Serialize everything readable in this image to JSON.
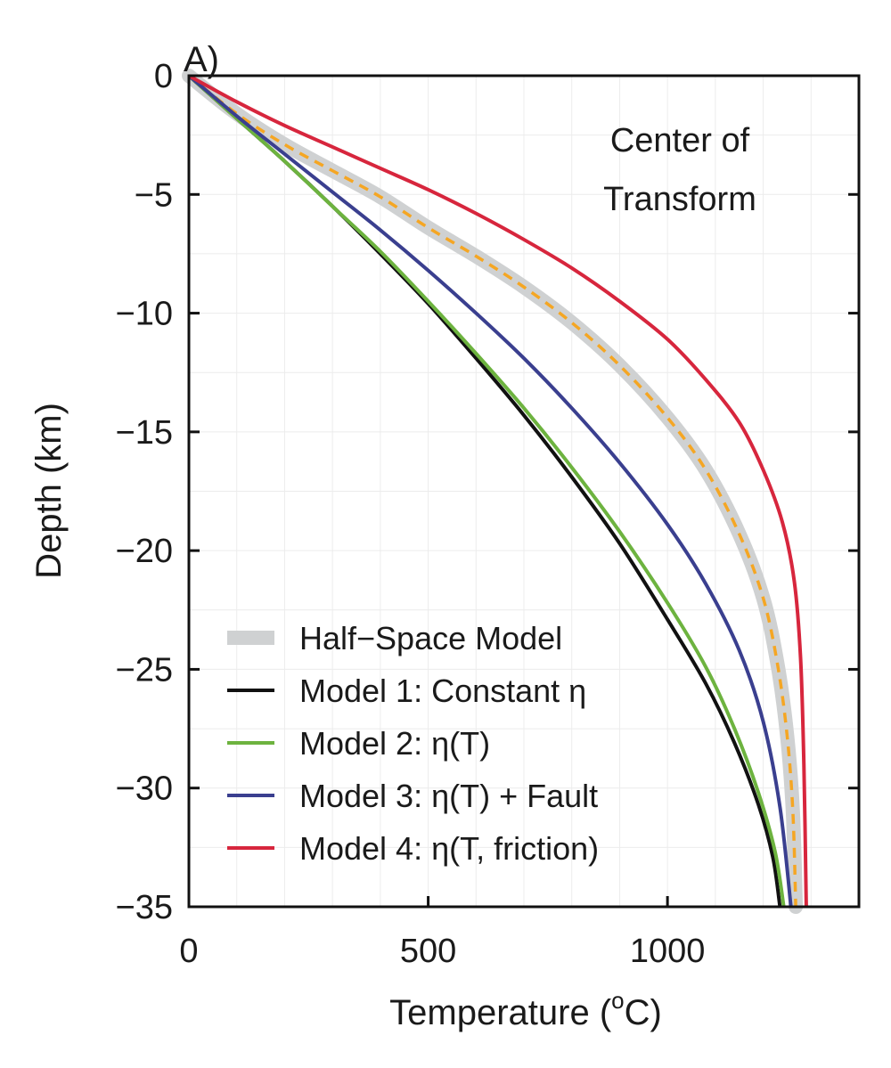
{
  "chart_data": {
    "type": "line",
    "panel_label": "A)",
    "annotation": [
      "Center of",
      "Transform"
    ],
    "xlabel": "Temperature (",
    "xlabel_sup": "o",
    "xlabel_end": "C)",
    "ylabel": "Depth (km)",
    "xlim": [
      0,
      1400
    ],
    "ylim": [
      -35,
      0
    ],
    "xticks": [
      0,
      500,
      1000
    ],
    "xtick_labels": [
      "0",
      "500",
      "1000"
    ],
    "yticks": [
      0,
      -5,
      -10,
      -15,
      -20,
      -25,
      -30,
      -35
    ],
    "ytick_labels": [
      "0",
      "−5",
      "−10",
      "−15",
      "−20",
      "−25",
      "−30",
      "−35"
    ],
    "grid": true,
    "legend_position": "bottom-left",
    "series": [
      {
        "name": "Half−Space Model",
        "color": "#cfd1d2",
        "style": "thick",
        "x": [
          0,
          100,
          200,
          300,
          400,
          500,
          600,
          700,
          800,
          900,
          1000,
          1080,
          1150,
          1200,
          1230,
          1250,
          1262,
          1268
        ],
        "y": [
          0,
          -1.6,
          -2.9,
          -4.0,
          -5.1,
          -6.4,
          -7.6,
          -8.9,
          -10.4,
          -12.2,
          -14.4,
          -16.6,
          -19.3,
          -22.0,
          -24.8,
          -27.8,
          -31.0,
          -35.0
        ]
      },
      {
        "name": "",
        "color": "#f5a623",
        "style": "dashed",
        "x": [
          0,
          100,
          200,
          300,
          400,
          500,
          600,
          700,
          800,
          900,
          1000,
          1080,
          1150,
          1200,
          1230,
          1250,
          1262,
          1268
        ],
        "y": [
          0,
          -1.6,
          -2.9,
          -4.0,
          -5.1,
          -6.4,
          -7.6,
          -8.9,
          -10.4,
          -12.2,
          -14.4,
          -16.6,
          -19.3,
          -22.0,
          -24.8,
          -27.8,
          -31.0,
          -35.0
        ]
      },
      {
        "name": "Model 1: Constant η",
        "color": "#111111",
        "style": "solid",
        "x": [
          0,
          100,
          200,
          300,
          400,
          500,
          600,
          700,
          800,
          900,
          1000,
          1080,
          1140,
          1190,
          1220,
          1235
        ],
        "y": [
          0,
          -1.8,
          -3.6,
          -5.5,
          -7.5,
          -9.6,
          -11.9,
          -14.3,
          -16.9,
          -19.7,
          -22.9,
          -25.6,
          -28.1,
          -30.7,
          -32.9,
          -35.0
        ]
      },
      {
        "name": "Model 2: η(T)",
        "color": "#6db33f",
        "style": "solid",
        "x": [
          0,
          100,
          200,
          300,
          400,
          500,
          600,
          700,
          800,
          900,
          1000,
          1080,
          1140,
          1190,
          1225,
          1243
        ],
        "y": [
          0,
          -1.8,
          -3.6,
          -5.5,
          -7.4,
          -9.5,
          -11.7,
          -14.0,
          -16.5,
          -19.2,
          -22.2,
          -24.9,
          -27.5,
          -30.2,
          -32.7,
          -35.0
        ]
      },
      {
        "name": "Model 3: η(T) + Fault",
        "color": "#3a3f8f",
        "style": "solid",
        "x": [
          0,
          100,
          200,
          300,
          400,
          500,
          600,
          700,
          800,
          900,
          1000,
          1080,
          1150,
          1200,
          1235,
          1258
        ],
        "y": [
          0,
          -1.7,
          -3.3,
          -4.9,
          -6.5,
          -8.2,
          -10.0,
          -11.9,
          -14.0,
          -16.3,
          -18.9,
          -21.4,
          -24.2,
          -27.2,
          -30.8,
          -35.0
        ]
      },
      {
        "name": "Model 4: η(T, friction)",
        "color": "#d7263d",
        "style": "solid",
        "x": [
          0,
          100,
          200,
          300,
          400,
          500,
          600,
          700,
          800,
          900,
          1000,
          1080,
          1150,
          1200,
          1240,
          1265,
          1278,
          1285,
          1290
        ],
        "y": [
          0,
          -1.1,
          -2.1,
          -3.0,
          -3.9,
          -4.8,
          -5.8,
          -6.9,
          -8.1,
          -9.5,
          -11.1,
          -12.8,
          -14.6,
          -16.6,
          -18.8,
          -21.3,
          -24.5,
          -29.0,
          -35.0
        ]
      }
    ]
  }
}
